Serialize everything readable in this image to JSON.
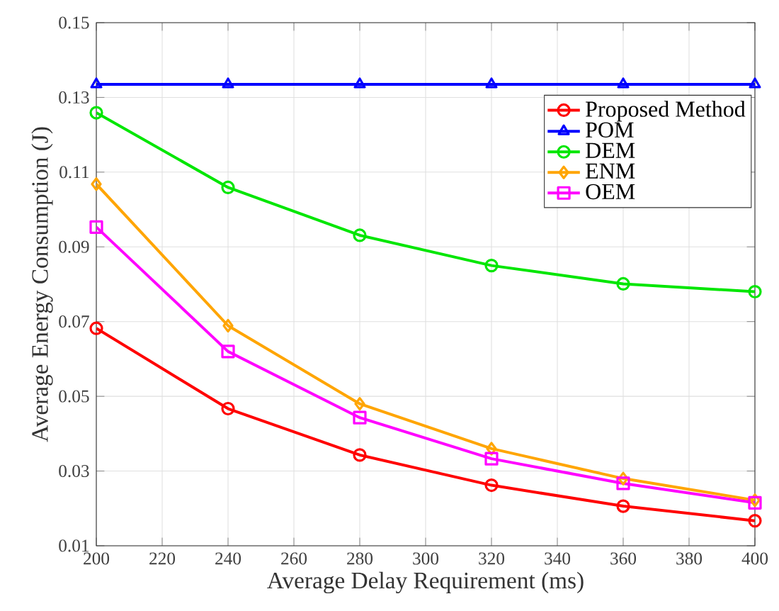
{
  "chart_data": {
    "type": "line",
    "xlabel": "Average Delay Requirement (ms)",
    "ylabel": "Average Energy Consumption (J)",
    "x": [
      200,
      240,
      280,
      320,
      360,
      400
    ],
    "series": [
      {
        "name": "Proposed Method",
        "color": "#ff0000",
        "marker": "circle",
        "values": [
          0.0682,
          0.0467,
          0.0343,
          0.0262,
          0.0206,
          0.0167
        ]
      },
      {
        "name": "POM",
        "color": "#0000ff",
        "marker": "triangle",
        "values": [
          0.1335,
          0.1335,
          0.1335,
          0.1335,
          0.1335,
          0.1335
        ]
      },
      {
        "name": "DEM",
        "color": "#00e600",
        "marker": "circle",
        "values": [
          0.1259,
          0.1059,
          0.0931,
          0.085,
          0.0801,
          0.078
        ]
      },
      {
        "name": "ENM",
        "color": "#ffa500",
        "marker": "diamond",
        "values": [
          0.1068,
          0.0689,
          0.048,
          0.036,
          0.028,
          0.0222
        ]
      },
      {
        "name": "OEM",
        "color": "#ff00ff",
        "marker": "square",
        "values": [
          0.0953,
          0.062,
          0.0443,
          0.0333,
          0.0267,
          0.0215
        ]
      }
    ],
    "xlim": [
      200,
      400
    ],
    "ylim": [
      0.01,
      0.15
    ],
    "xticks": [
      200,
      220,
      240,
      260,
      280,
      300,
      320,
      340,
      360,
      380,
      400
    ],
    "yticks": [
      0.01,
      0.03,
      0.05,
      0.07,
      0.09,
      0.11,
      0.13,
      0.15
    ],
    "grid": true,
    "legend": "top right",
    "line_style": "solid"
  }
}
